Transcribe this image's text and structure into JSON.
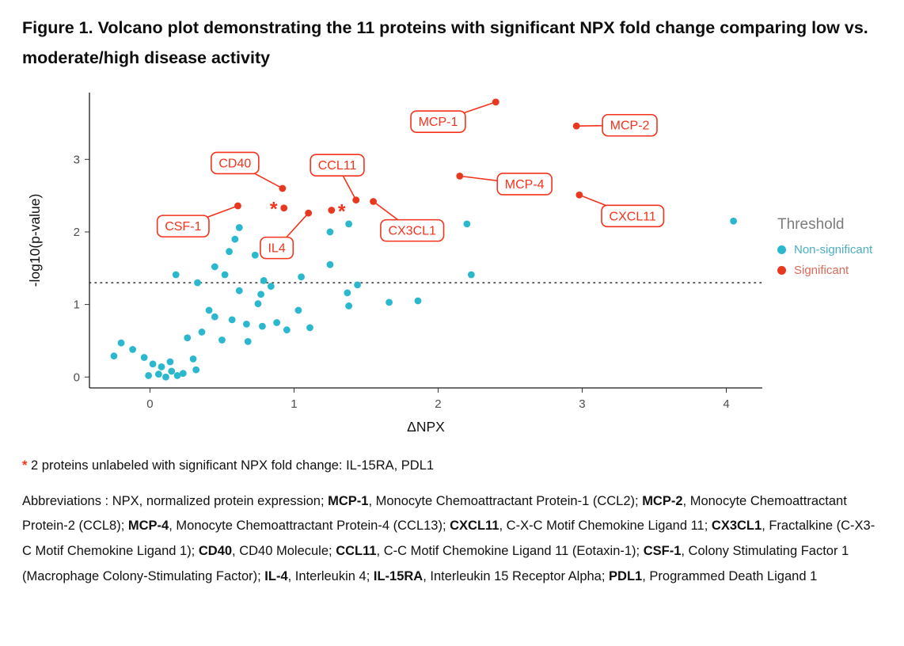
{
  "title": "Figure 1. Volcano plot demonstrating the 11 proteins with significant NPX fold change comparing low vs. moderate/high disease activity",
  "footnote": {
    "marker": "*",
    "text": " 2 proteins unlabeled with significant NPX fold change: IL-15RA, PDL1"
  },
  "abbreviations": {
    "segments": [
      {
        "t": "Abbreviations : NPX, normalized protein expression; ",
        "b": false
      },
      {
        "t": "MCP-1",
        "b": true
      },
      {
        "t": ", Monocyte Chemoattractant Protein-1 (CCL2); ",
        "b": false
      },
      {
        "t": "MCP-2",
        "b": true
      },
      {
        "t": ", Monocyte Chemoattractant Protein-2 (CCL8); ",
        "b": false
      },
      {
        "t": "MCP-4",
        "b": true
      },
      {
        "t": ", Monocyte Chemoattractant Protein-4 (CCL13); ",
        "b": false
      },
      {
        "t": "CXCL11",
        "b": true
      },
      {
        "t": ", C-X-C Motif Chemokine Ligand 11; ",
        "b": false
      },
      {
        "t": "CX3CL1",
        "b": true
      },
      {
        "t": ", Fractalkine (C-X3-C Motif Chemokine Ligand 1); ",
        "b": false
      },
      {
        "t": "CD40",
        "b": true
      },
      {
        "t": ", CD40 Molecule; ",
        "b": false
      },
      {
        "t": "CCL11",
        "b": true
      },
      {
        "t": ", C-C Motif Chemokine Ligand 11 (Eotaxin-1); ",
        "b": false
      },
      {
        "t": "CSF-1",
        "b": true
      },
      {
        "t": ", Colony Stimulating Factor 1 (Macrophage Colony-Stimulating Factor); ",
        "b": false
      },
      {
        "t": "IL-4",
        "b": true
      },
      {
        "t": ", Interleukin 4; ",
        "b": false
      },
      {
        "t": "IL-15RA",
        "b": true
      },
      {
        "t": ", Interleukin 15 Receptor Alpha; ",
        "b": false
      },
      {
        "t": "PDL1",
        "b": true
      },
      {
        "t": ", Programmed Death Ligand 1",
        "b": false
      }
    ]
  },
  "chart_data": {
    "type": "scatter",
    "title": "",
    "xlabel": "ΔNPX",
    "ylabel": "-log10(p-value)",
    "xlim": [
      -0.42,
      4.25
    ],
    "ylim": [
      -0.15,
      3.92
    ],
    "x_ticks": [
      0,
      1,
      2,
      3,
      4
    ],
    "y_ticks": [
      0,
      1,
      2,
      3
    ],
    "grid": false,
    "threshold_line_y": 1.3,
    "colors": {
      "nonsignificant_cyan": "#2bb8ce",
      "significant_red": "#e8381f",
      "label_red": "#f5321c",
      "axis_black": "#1a1a1a",
      "legend_title_gray": "#7c7c7c"
    },
    "legend": {
      "title": "Threshold",
      "position": "right",
      "items": [
        {
          "label": "Non-significant",
          "color": "#2bb8ce",
          "text_color": "#4bafbe"
        },
        {
          "label": "Significant",
          "color": "#e8381f",
          "text_color": "#db6a5b"
        }
      ]
    },
    "series": [
      {
        "name": "Non-significant",
        "color": "#2bb8ce",
        "points": [
          [
            -0.25,
            0.29
          ],
          [
            -0.2,
            0.47
          ],
          [
            -0.12,
            0.38
          ],
          [
            -0.04,
            0.27
          ],
          [
            -0.01,
            0.02
          ],
          [
            0.02,
            0.18
          ],
          [
            0.06,
            0.04
          ],
          [
            0.08,
            0.14
          ],
          [
            0.11,
            0.0
          ],
          [
            0.14,
            0.21
          ],
          [
            0.15,
            0.08
          ],
          [
            0.19,
            0.02
          ],
          [
            0.23,
            0.05
          ],
          [
            0.26,
            0.54
          ],
          [
            0.3,
            0.25
          ],
          [
            0.32,
            0.1
          ],
          [
            0.33,
            1.3
          ],
          [
            0.18,
            1.41
          ],
          [
            0.36,
            0.62
          ],
          [
            0.41,
            0.92
          ],
          [
            0.45,
            0.83
          ],
          [
            0.45,
            1.52
          ],
          [
            0.5,
            0.51
          ],
          [
            0.52,
            1.41
          ],
          [
            0.55,
            1.73
          ],
          [
            0.57,
            0.79
          ],
          [
            0.59,
            1.9
          ],
          [
            0.62,
            1.19
          ],
          [
            0.62,
            2.06
          ],
          [
            0.67,
            0.73
          ],
          [
            0.68,
            0.49
          ],
          [
            0.73,
            1.68
          ],
          [
            0.75,
            1.01
          ],
          [
            0.77,
            1.14
          ],
          [
            0.78,
            0.7
          ],
          [
            0.79,
            1.33
          ],
          [
            0.84,
            1.25
          ],
          [
            0.88,
            0.75
          ],
          [
            0.95,
            0.65
          ],
          [
            1.03,
            0.92
          ],
          [
            1.05,
            1.38
          ],
          [
            1.11,
            0.68
          ],
          [
            1.25,
            1.55
          ],
          [
            1.25,
            2.0
          ],
          [
            1.37,
            1.16
          ],
          [
            1.38,
            0.98
          ],
          [
            1.38,
            2.11
          ],
          [
            1.44,
            1.27
          ],
          [
            1.66,
            1.03
          ],
          [
            1.86,
            1.05
          ],
          [
            2.2,
            2.11
          ],
          [
            2.23,
            1.41
          ],
          [
            4.05,
            2.15
          ]
        ]
      },
      {
        "name": "Significant",
        "color": "#e8381f",
        "points": [
          [
            2.4,
            3.79
          ],
          [
            2.96,
            3.46
          ],
          [
            2.15,
            2.77
          ],
          [
            2.98,
            2.51
          ],
          [
            0.92,
            2.6
          ],
          [
            1.43,
            2.44
          ],
          [
            1.55,
            2.42
          ],
          [
            0.61,
            2.36
          ],
          [
            1.1,
            2.26
          ],
          [
            0.93,
            2.33
          ],
          [
            1.26,
            2.3
          ]
        ]
      }
    ],
    "labels": [
      {
        "text": "MCP-1",
        "point": [
          2.4,
          3.79
        ],
        "box_center": [
          2.0,
          3.52
        ]
      },
      {
        "text": "MCP-2",
        "point": [
          2.96,
          3.46
        ],
        "box_center": [
          3.33,
          3.47
        ]
      },
      {
        "text": "CD40",
        "point": [
          0.92,
          2.6
        ],
        "box_center": [
          0.59,
          2.95
        ]
      },
      {
        "text": "CCL11",
        "point": [
          1.43,
          2.44
        ],
        "box_center": [
          1.3,
          2.92
        ]
      },
      {
        "text": "MCP-4",
        "point": [
          2.15,
          2.77
        ],
        "box_center": [
          2.6,
          2.66
        ]
      },
      {
        "text": "CXCL11",
        "point": [
          2.98,
          2.51
        ],
        "box_center": [
          3.35,
          2.22
        ]
      },
      {
        "text": "CSF-1",
        "point": [
          0.61,
          2.36
        ],
        "box_center": [
          0.23,
          2.08
        ]
      },
      {
        "text": "CX3CL1",
        "point": [
          1.55,
          2.42
        ],
        "box_center": [
          1.82,
          2.02
        ]
      },
      {
        "text": "IL4",
        "point": [
          1.1,
          2.26
        ],
        "box_center": [
          0.88,
          1.78
        ]
      }
    ],
    "asterisk_points": [
      {
        "point": [
          0.93,
          2.33
        ],
        "side": "left"
      },
      {
        "point": [
          1.26,
          2.3
        ],
        "side": "right"
      }
    ]
  }
}
